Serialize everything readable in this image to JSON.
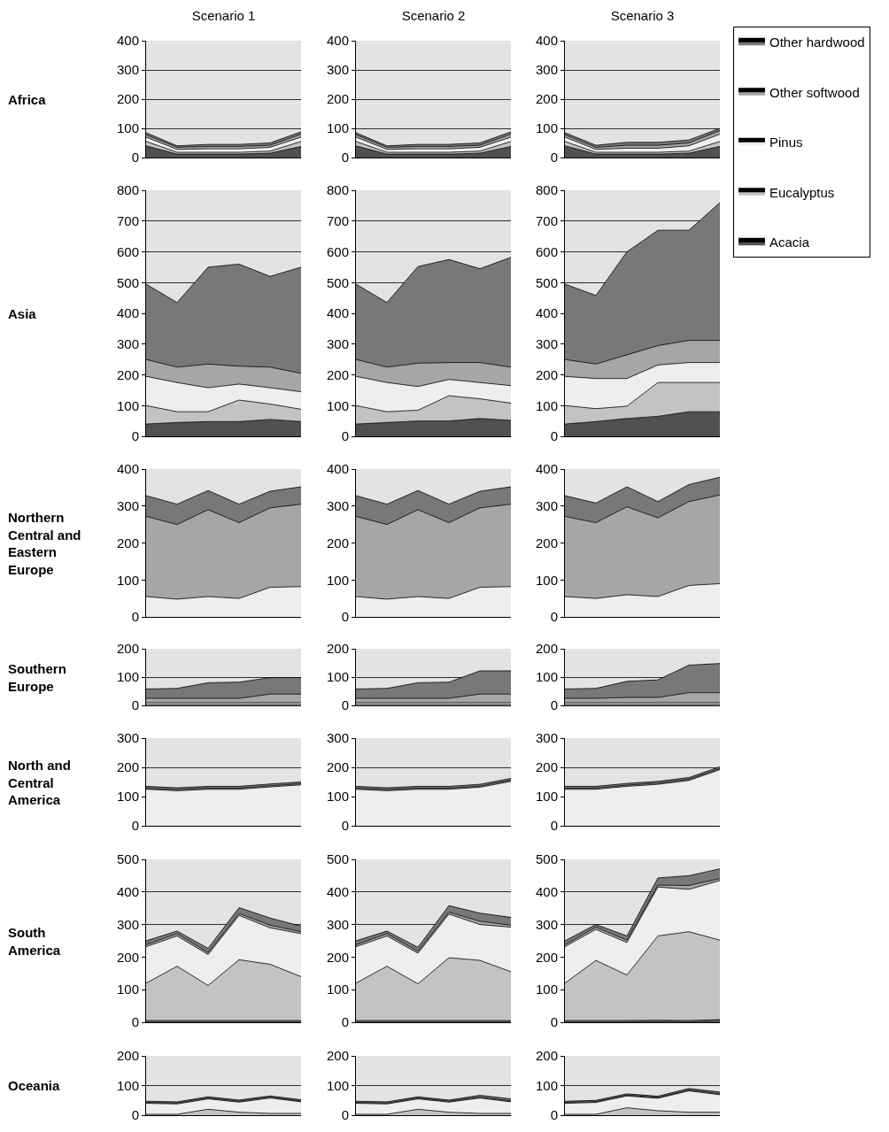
{
  "chart_data": [
    {
      "type": "area",
      "title": "Scenario 1",
      "ylabel": "Africa",
      "categories": [
        null,
        null,
        null,
        null,
        null,
        null
      ],
      "stacked": true,
      "ylim": [
        0,
        400
      ],
      "yticks": [
        0,
        100,
        200,
        300,
        400
      ],
      "grid": "y",
      "tick_labels": "y",
      "series": [
        {
          "color": "#505050",
          "values": [
            40,
            12,
            12,
            12,
            15,
            38
          ]
        },
        {
          "color": "#c3c3c3",
          "values": [
            15,
            6,
            6,
            6,
            7,
            17
          ]
        },
        {
          "color": "#eeeeee",
          "values": [
            15,
            10,
            12,
            12,
            13,
            15
          ]
        },
        {
          "color": "#a6a6a6",
          "values": [
            8,
            7,
            8,
            8,
            7,
            10
          ]
        },
        {
          "color": "#787878",
          "values": [
            7,
            5,
            7,
            7,
            8,
            8
          ]
        }
      ]
    },
    {
      "type": "area",
      "title": "Scenario 2",
      "categories": [
        null,
        null,
        null,
        null,
        null,
        null
      ],
      "stacked": true,
      "ylim": [
        0,
        400
      ],
      "yticks": [
        0,
        100,
        200,
        300,
        400
      ],
      "grid": "y",
      "tick_labels": "y",
      "series": [
        {
          "color": "#505050",
          "values": [
            40,
            12,
            12,
            12,
            15,
            38
          ]
        },
        {
          "color": "#c3c3c3",
          "values": [
            15,
            6,
            6,
            6,
            7,
            17
          ]
        },
        {
          "color": "#eeeeee",
          "values": [
            15,
            10,
            12,
            12,
            13,
            15
          ]
        },
        {
          "color": "#a6a6a6",
          "values": [
            8,
            7,
            8,
            8,
            7,
            10
          ]
        },
        {
          "color": "#787878",
          "values": [
            7,
            5,
            7,
            7,
            8,
            8
          ]
        }
      ]
    },
    {
      "type": "area",
      "title": "Scenario 3",
      "categories": [
        null,
        null,
        null,
        null,
        null,
        null
      ],
      "stacked": true,
      "ylim": [
        0,
        400
      ],
      "yticks": [
        0,
        100,
        200,
        300,
        400
      ],
      "grid": "y",
      "tick_labels": "y",
      "legend": "right",
      "series": [
        {
          "name": "Acacia",
          "color": "#505050",
          "values": [
            40,
            12,
            12,
            12,
            15,
            38
          ]
        },
        {
          "name": "Eucalyptus",
          "color": "#c3c3c3",
          "values": [
            15,
            6,
            6,
            6,
            7,
            17
          ]
        },
        {
          "name": "Pinus",
          "color": "#eeeeee",
          "values": [
            15,
            10,
            14,
            14,
            18,
            25
          ]
        },
        {
          "name": "Other softwood",
          "color": "#a6a6a6",
          "values": [
            8,
            7,
            10,
            10,
            10,
            12
          ]
        },
        {
          "name": "Other hardwood",
          "color": "#787878",
          "values": [
            7,
            7,
            10,
            10,
            10,
            8
          ]
        }
      ]
    },
    {
      "type": "area",
      "ylabel": "Asia",
      "categories": [
        null,
        null,
        null,
        null,
        null,
        null
      ],
      "stacked": true,
      "ylim": [
        0,
        800
      ],
      "yticks": [
        0,
        100,
        200,
        300,
        400,
        500,
        600,
        700,
        800
      ],
      "grid": "y",
      "tick_labels": "y",
      "series": [
        {
          "color": "#505050",
          "values": [
            40,
            45,
            48,
            48,
            55,
            48
          ]
        },
        {
          "color": "#c3c3c3",
          "values": [
            60,
            35,
            32,
            70,
            50,
            40
          ]
        },
        {
          "color": "#eeeeee",
          "values": [
            95,
            95,
            78,
            52,
            53,
            57
          ]
        },
        {
          "color": "#a6a6a6",
          "values": [
            55,
            50,
            77,
            58,
            67,
            60
          ]
        },
        {
          "color": "#787878",
          "values": [
            245,
            210,
            315,
            332,
            295,
            345
          ]
        }
      ]
    },
    {
      "type": "area",
      "categories": [
        null,
        null,
        null,
        null,
        null,
        null
      ],
      "stacked": true,
      "ylim": [
        0,
        800
      ],
      "yticks": [
        0,
        100,
        200,
        300,
        400,
        500,
        600,
        700,
        800
      ],
      "grid": "y",
      "tick_labels": "y",
      "series": [
        {
          "color": "#505050",
          "values": [
            40,
            45,
            50,
            50,
            58,
            52
          ]
        },
        {
          "color": "#c3c3c3",
          "values": [
            60,
            35,
            35,
            82,
            64,
            56
          ]
        },
        {
          "color": "#eeeeee",
          "values": [
            95,
            95,
            77,
            53,
            53,
            57
          ]
        },
        {
          "color": "#a6a6a6",
          "values": [
            55,
            50,
            76,
            55,
            65,
            60
          ]
        },
        {
          "color": "#787878",
          "values": [
            245,
            210,
            314,
            335,
            305,
            357
          ]
        }
      ]
    },
    {
      "type": "area",
      "categories": [
        null,
        null,
        null,
        null,
        null,
        null
      ],
      "stacked": true,
      "ylim": [
        0,
        800
      ],
      "yticks": [
        0,
        100,
        200,
        300,
        400,
        500,
        600,
        700,
        800
      ],
      "grid": "y",
      "tick_labels": "y",
      "series": [
        {
          "color": "#505050",
          "values": [
            40,
            48,
            58,
            65,
            80,
            80
          ]
        },
        {
          "color": "#c3c3c3",
          "values": [
            60,
            42,
            40,
            110,
            95,
            95
          ]
        },
        {
          "color": "#eeeeee",
          "values": [
            95,
            98,
            90,
            57,
            65,
            65
          ]
        },
        {
          "color": "#a6a6a6",
          "values": [
            55,
            47,
            77,
            63,
            72,
            72
          ]
        },
        {
          "color": "#787878",
          "values": [
            245,
            223,
            335,
            375,
            358,
            448
          ]
        }
      ]
    },
    {
      "type": "area",
      "ylabel": "Northern Central and Eastern Europe",
      "categories": [
        null,
        null,
        null,
        null,
        null,
        null
      ],
      "stacked": true,
      "ylim": [
        0,
        400
      ],
      "yticks": [
        0,
        100,
        200,
        300,
        400
      ],
      "grid": "y",
      "tick_labels": "y",
      "series": [
        {
          "color": "#eeeeee",
          "values": [
            55,
            48,
            55,
            50,
            80,
            82
          ]
        },
        {
          "color": "#a6a6a6",
          "values": [
            217,
            202,
            235,
            205,
            215,
            223
          ]
        },
        {
          "color": "#787878",
          "values": [
            56,
            55,
            52,
            50,
            45,
            47
          ]
        }
      ]
    },
    {
      "type": "area",
      "categories": [
        null,
        null,
        null,
        null,
        null,
        null
      ],
      "stacked": true,
      "ylim": [
        0,
        400
      ],
      "yticks": [
        0,
        100,
        200,
        300,
        400
      ],
      "grid": "y",
      "tick_labels": "y",
      "series": [
        {
          "color": "#eeeeee",
          "values": [
            55,
            48,
            55,
            50,
            80,
            82
          ]
        },
        {
          "color": "#a6a6a6",
          "values": [
            217,
            202,
            235,
            205,
            215,
            223
          ]
        },
        {
          "color": "#787878",
          "values": [
            56,
            55,
            52,
            50,
            45,
            47
          ]
        }
      ]
    },
    {
      "type": "area",
      "categories": [
        null,
        null,
        null,
        null,
        null,
        null
      ],
      "stacked": true,
      "ylim": [
        0,
        400
      ],
      "yticks": [
        0,
        100,
        200,
        300,
        400
      ],
      "grid": "y",
      "tick_labels": "y",
      "series": [
        {
          "color": "#eeeeee",
          "values": [
            55,
            50,
            60,
            55,
            85,
            90
          ]
        },
        {
          "color": "#a6a6a6",
          "values": [
            217,
            205,
            238,
            213,
            227,
            240
          ]
        },
        {
          "color": "#787878",
          "values": [
            56,
            53,
            54,
            44,
            46,
            48
          ]
        }
      ]
    },
    {
      "type": "area",
      "ylabel": "Southern Europe",
      "categories": [
        null,
        null,
        null,
        null,
        null,
        null
      ],
      "stacked": true,
      "ylim": [
        0,
        200
      ],
      "yticks": [
        0,
        100,
        200
      ],
      "grid": "y",
      "tick_labels": "y",
      "series": [
        {
          "color": "#c3c3c3",
          "values": [
            4,
            4,
            4,
            4,
            4,
            4
          ]
        },
        {
          "color": "#eeeeee",
          "values": [
            6,
            6,
            6,
            6,
            6,
            6
          ]
        },
        {
          "color": "#a6a6a6",
          "values": [
            15,
            15,
            15,
            15,
            30,
            30
          ]
        },
        {
          "color": "#787878",
          "values": [
            33,
            35,
            55,
            57,
            58,
            58
          ]
        }
      ]
    },
    {
      "type": "area",
      "categories": [
        null,
        null,
        null,
        null,
        null,
        null
      ],
      "stacked": true,
      "ylim": [
        0,
        200
      ],
      "yticks": [
        0,
        100,
        200
      ],
      "grid": "y",
      "tick_labels": "y",
      "series": [
        {
          "color": "#c3c3c3",
          "values": [
            4,
            4,
            4,
            4,
            4,
            4
          ]
        },
        {
          "color": "#eeeeee",
          "values": [
            6,
            6,
            6,
            6,
            6,
            6
          ]
        },
        {
          "color": "#a6a6a6",
          "values": [
            15,
            15,
            15,
            15,
            30,
            30
          ]
        },
        {
          "color": "#787878",
          "values": [
            33,
            35,
            55,
            57,
            82,
            82
          ]
        }
      ]
    },
    {
      "type": "area",
      "categories": [
        null,
        null,
        null,
        null,
        null,
        null
      ],
      "stacked": true,
      "ylim": [
        0,
        200
      ],
      "yticks": [
        0,
        100,
        200
      ],
      "grid": "y",
      "tick_labels": "y",
      "series": [
        {
          "color": "#c3c3c3",
          "values": [
            4,
            4,
            4,
            4,
            4,
            4
          ]
        },
        {
          "color": "#eeeeee",
          "values": [
            6,
            6,
            6,
            6,
            6,
            6
          ]
        },
        {
          "color": "#a6a6a6",
          "values": [
            15,
            15,
            18,
            18,
            35,
            35
          ]
        },
        {
          "color": "#787878",
          "values": [
            33,
            35,
            57,
            62,
            97,
            103
          ]
        }
      ]
    },
    {
      "type": "area",
      "ylabel": "North and Central America",
      "categories": [
        null,
        null,
        null,
        null,
        null,
        null
      ],
      "stacked": true,
      "ylim": [
        0,
        300
      ],
      "yticks": [
        0,
        100,
        200,
        300
      ],
      "grid": "y",
      "tick_labels": "y",
      "series": [
        {
          "color": "#eeeeee",
          "values": [
            125,
            120,
            125,
            125,
            133,
            140
          ]
        },
        {
          "color": "#a6a6a6",
          "values": [
            4,
            4,
            4,
            4,
            4,
            4
          ]
        },
        {
          "color": "#787878",
          "values": [
            6,
            6,
            6,
            6,
            6,
            6
          ]
        }
      ]
    },
    {
      "type": "area",
      "categories": [
        null,
        null,
        null,
        null,
        null,
        null
      ],
      "stacked": true,
      "ylim": [
        0,
        300
      ],
      "yticks": [
        0,
        100,
        200,
        300
      ],
      "grid": "y",
      "tick_labels": "y",
      "series": [
        {
          "color": "#eeeeee",
          "values": [
            125,
            120,
            125,
            125,
            132,
            152
          ]
        },
        {
          "color": "#a6a6a6",
          "values": [
            4,
            4,
            4,
            4,
            4,
            4
          ]
        },
        {
          "color": "#787878",
          "values": [
            6,
            6,
            6,
            6,
            6,
            6
          ]
        }
      ]
    },
    {
      "type": "area",
      "categories": [
        null,
        null,
        null,
        null,
        null,
        null
      ],
      "stacked": true,
      "ylim": [
        0,
        300
      ],
      "yticks": [
        0,
        100,
        200,
        300
      ],
      "grid": "y",
      "tick_labels": "y",
      "series": [
        {
          "color": "#eeeeee",
          "values": [
            125,
            125,
            135,
            142,
            155,
            192
          ]
        },
        {
          "color": "#a6a6a6",
          "values": [
            4,
            4,
            4,
            4,
            4,
            4
          ]
        },
        {
          "color": "#787878",
          "values": [
            6,
            6,
            6,
            6,
            6,
            6
          ]
        }
      ]
    },
    {
      "type": "area",
      "ylabel": "South America",
      "categories": [
        null,
        null,
        null,
        null,
        null,
        null
      ],
      "stacked": true,
      "ylim": [
        0,
        500
      ],
      "yticks": [
        0,
        100,
        200,
        300,
        400,
        500
      ],
      "grid": "y",
      "tick_labels": "y",
      "series": [
        {
          "color": "#505050",
          "values": [
            5,
            5,
            5,
            5,
            5,
            5
          ]
        },
        {
          "color": "#c3c3c3",
          "values": [
            115,
            167,
            108,
            187,
            173,
            135
          ]
        },
        {
          "color": "#eeeeee",
          "values": [
            112,
            93,
            95,
            136,
            112,
            132
          ]
        },
        {
          "color": "#a6a6a6",
          "values": [
            6,
            7,
            6,
            6,
            8,
            6
          ]
        },
        {
          "color": "#787878",
          "values": [
            12,
            8,
            13,
            18,
            22,
            17
          ]
        }
      ]
    },
    {
      "type": "area",
      "categories": [
        null,
        null,
        null,
        null,
        null,
        null
      ],
      "stacked": true,
      "ylim": [
        0,
        500
      ],
      "yticks": [
        0,
        100,
        200,
        300,
        400,
        500
      ],
      "grid": "y",
      "tick_labels": "y",
      "series": [
        {
          "color": "#505050",
          "values": [
            5,
            5,
            5,
            5,
            5,
            5
          ]
        },
        {
          "color": "#c3c3c3",
          "values": [
            115,
            167,
            113,
            193,
            185,
            150
          ]
        },
        {
          "color": "#eeeeee",
          "values": [
            112,
            93,
            94,
            134,
            110,
            137
          ]
        },
        {
          "color": "#a6a6a6",
          "values": [
            6,
            7,
            6,
            6,
            10,
            6
          ]
        },
        {
          "color": "#787878",
          "values": [
            12,
            8,
            12,
            20,
            25,
            24
          ]
        }
      ]
    },
    {
      "type": "area",
      "categories": [
        null,
        null,
        null,
        null,
        null,
        null
      ],
      "stacked": true,
      "ylim": [
        0,
        500
      ],
      "yticks": [
        0,
        100,
        200,
        300,
        400,
        500
      ],
      "grid": "y",
      "tick_labels": "y",
      "series": [
        {
          "color": "#505050",
          "values": [
            5,
            5,
            5,
            6,
            5,
            8
          ]
        },
        {
          "color": "#c3c3c3",
          "values": [
            115,
            185,
            140,
            259,
            273,
            244
          ]
        },
        {
          "color": "#eeeeee",
          "values": [
            112,
            95,
            100,
            150,
            130,
            183
          ]
        },
        {
          "color": "#a6a6a6",
          "values": [
            6,
            7,
            7,
            6,
            12,
            6
          ]
        },
        {
          "color": "#787878",
          "values": [
            12,
            8,
            13,
            22,
            30,
            30
          ]
        }
      ]
    },
    {
      "type": "area",
      "ylabel": "Oceania",
      "categories": [
        null,
        null,
        null,
        null,
        null,
        null
      ],
      "stacked": true,
      "ylim": [
        0,
        200
      ],
      "yticks": [
        0,
        100,
        200
      ],
      "grid": "y",
      "tick_labels": "y",
      "series": [
        {
          "color": "#c3c3c3",
          "values": [
            3,
            3,
            20,
            10,
            6,
            6
          ]
        },
        {
          "color": "#eeeeee",
          "values": [
            37,
            35,
            35,
            34,
            52,
            39
          ]
        },
        {
          "color": "#a6a6a6",
          "values": [
            3,
            3,
            3,
            3,
            3,
            3
          ]
        },
        {
          "color": "#787878",
          "values": [
            4,
            4,
            4,
            4,
            4,
            4
          ]
        }
      ]
    },
    {
      "type": "area",
      "categories": [
        null,
        null,
        null,
        null,
        null,
        null
      ],
      "stacked": true,
      "ylim": [
        0,
        200
      ],
      "yticks": [
        0,
        100,
        200
      ],
      "grid": "y",
      "tick_labels": "y",
      "series": [
        {
          "color": "#c3c3c3",
          "values": [
            3,
            3,
            20,
            10,
            6,
            6
          ]
        },
        {
          "color": "#eeeeee",
          "values": [
            37,
            35,
            35,
            34,
            52,
            39
          ]
        },
        {
          "color": "#a6a6a6",
          "values": [
            3,
            3,
            3,
            3,
            3,
            3
          ]
        },
        {
          "color": "#787878",
          "values": [
            4,
            4,
            4,
            4,
            6,
            7
          ]
        }
      ]
    },
    {
      "type": "area",
      "categories": [
        null,
        null,
        null,
        null,
        null,
        null
      ],
      "stacked": true,
      "ylim": [
        0,
        200
      ],
      "yticks": [
        0,
        100,
        200
      ],
      "grid": "y",
      "tick_labels": "y",
      "series": [
        {
          "color": "#c3c3c3",
          "values": [
            3,
            3,
            25,
            15,
            10,
            10
          ]
        },
        {
          "color": "#eeeeee",
          "values": [
            37,
            40,
            40,
            42,
            72,
            59
          ]
        },
        {
          "color": "#a6a6a6",
          "values": [
            3,
            3,
            3,
            3,
            3,
            3
          ]
        },
        {
          "color": "#787878",
          "values": [
            4,
            4,
            4,
            4,
            5,
            6
          ]
        }
      ]
    }
  ]
}
